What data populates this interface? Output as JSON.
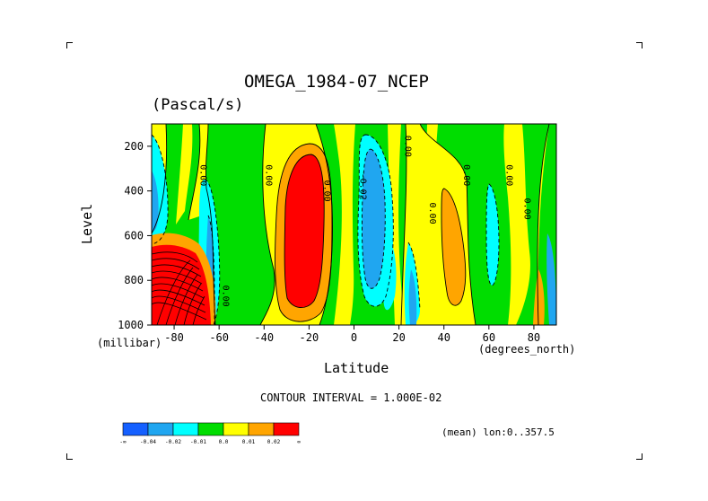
{
  "chart_data": {
    "type": "heatmap",
    "title": "OMEGA_1984-07_NCEP",
    "units": "(Pascal/s)",
    "xlabel": "Latitude",
    "x_units": "(degrees_north)",
    "ylabel": "Level",
    "y_units": "(millibar)",
    "xlim": [
      -90,
      90
    ],
    "ylim": [
      1000,
      100
    ],
    "x_ticks": [
      -80,
      -60,
      -40,
      -20,
      0,
      20,
      40,
      60,
      80
    ],
    "y_ticks": [
      200,
      400,
      600,
      800,
      1000
    ],
    "contour_interval_label": "CONTOUR INTERVAL = 1.000E-02",
    "mean_label": "(mean) lon:0..357.5",
    "contour_labels": [
      {
        "text": "0.00",
        "lat": -67,
        "level": 330
      },
      {
        "text": "0.00",
        "lat": -38,
        "level": 330
      },
      {
        "text": "0.00",
        "lat": -12,
        "level": 400
      },
      {
        "text": "-0.02",
        "lat": 4,
        "level": 380
      },
      {
        "text": "0.00",
        "lat": 24,
        "level": 200
      },
      {
        "text": "0.00",
        "lat": 35,
        "level": 500
      },
      {
        "text": "0.00",
        "lat": 50,
        "level": 330
      },
      {
        "text": "0.00",
        "lat": 69,
        "level": 330
      },
      {
        "text": "0.00",
        "lat": 77,
        "level": 480
      },
      {
        "text": "0.00",
        "lat": -57,
        "level": 870
      }
    ],
    "colorbar": {
      "colors": [
        "#1560ff",
        "#20a6f0",
        "#00ffff",
        "#00dd00",
        "#ffff00",
        "#ffa500",
        "#ff0000"
      ],
      "labels": [
        "-∞",
        "-0.04",
        "-0.02",
        "-0.01",
        "0.0",
        "0.01",
        "0.02",
        "∞"
      ]
    },
    "fields": [
      {
        "name": "strong-descent-core",
        "category": "red",
        "lat_center": -24,
        "level_center": 560,
        "value": 0.03
      },
      {
        "name": "descent-band",
        "category": "orange",
        "lat_center": -25,
        "level_center": 560,
        "value": 0.02
      },
      {
        "name": "ascent-core",
        "category": "blue",
        "lat_center": 8,
        "level_center": 550,
        "value": -0.04
      },
      {
        "name": "ascent-band",
        "category": "cyan",
        "lat_center": 8,
        "level_center": 560,
        "value": -0.02
      },
      {
        "name": "weak-descent-north",
        "category": "orange",
        "lat_center": 42,
        "level_center": 560,
        "value": 0.01
      },
      {
        "name": "antarctic-descent",
        "category": "red",
        "lat_center": -80,
        "level_center": 850,
        "value": 0.05
      }
    ]
  }
}
